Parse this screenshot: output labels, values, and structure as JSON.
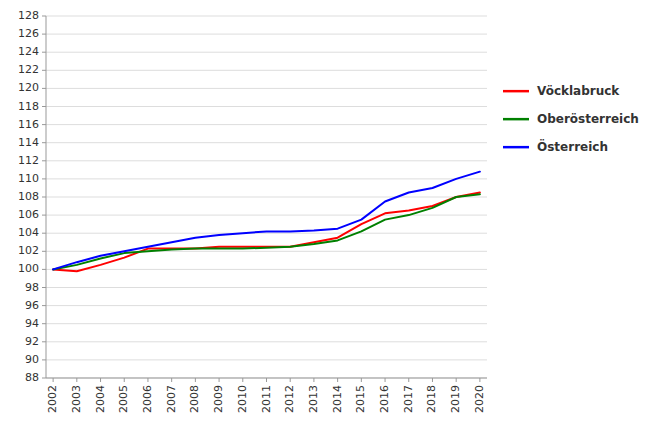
{
  "chart_data": {
    "type": "line",
    "x": [
      2002,
      2003,
      2004,
      2005,
      2006,
      2007,
      2008,
      2009,
      2010,
      2011,
      2012,
      2013,
      2014,
      2015,
      2016,
      2017,
      2018,
      2019,
      2020
    ],
    "xlim": [
      2001.7,
      2020.3
    ],
    "xticks": [
      2002,
      2003,
      2004,
      2005,
      2006,
      2007,
      2008,
      2009,
      2010,
      2011,
      2012,
      2013,
      2014,
      2015,
      2016,
      2017,
      2018,
      2019,
      2020
    ],
    "ylim": [
      88,
      128
    ],
    "yticks": [
      88,
      90,
      92,
      94,
      96,
      98,
      100,
      102,
      104,
      106,
      108,
      110,
      112,
      114,
      116,
      118,
      120,
      122,
      124,
      126,
      128
    ],
    "grid": true,
    "legend": "right",
    "series": [
      {
        "name": "Vöcklabruck",
        "color": "#ff0000",
        "values": [
          100.0,
          99.8,
          100.5,
          101.3,
          102.3,
          102.3,
          102.3,
          102.5,
          102.5,
          102.5,
          102.5,
          103.0,
          103.5,
          105.0,
          106.2,
          106.5,
          107.0,
          108.0,
          108.5
        ]
      },
      {
        "name": "Oberösterreich",
        "color": "#008000",
        "values": [
          100.0,
          100.5,
          101.2,
          101.8,
          102.0,
          102.2,
          102.3,
          102.3,
          102.3,
          102.4,
          102.5,
          102.8,
          103.2,
          104.2,
          105.5,
          106.0,
          106.8,
          108.0,
          108.3
        ]
      },
      {
        "name": "Österreich",
        "color": "#0000ff",
        "values": [
          100.0,
          100.8,
          101.5,
          102.0,
          102.5,
          103.0,
          103.5,
          103.8,
          104.0,
          104.2,
          104.2,
          104.3,
          104.5,
          105.5,
          107.5,
          108.5,
          109.0,
          110.0,
          110.8
        ]
      }
    ]
  }
}
